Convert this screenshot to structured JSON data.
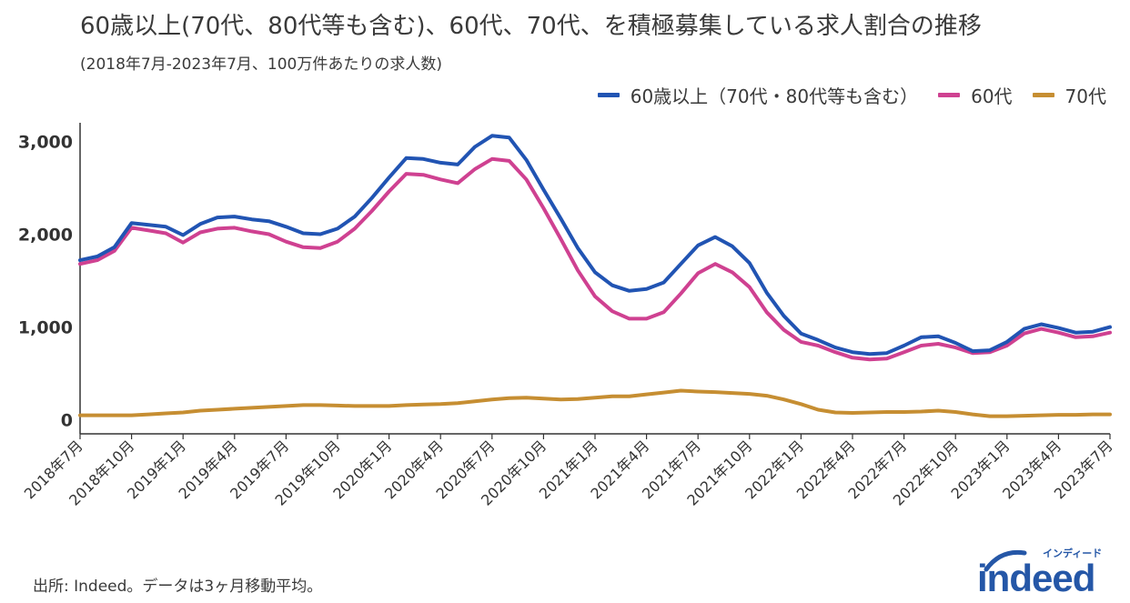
{
  "title": "60歳以上(70代、80代等も含む)、60代、70代、を積極募集している求人割合の推移",
  "subtitle": "(2018年7月-2023年7月、100万件あたりの求人数)",
  "source": "出所: Indeed。データは3ヶ月移動平均。",
  "logo": {
    "text": "indeed",
    "kana": "インディード"
  },
  "chart_data": {
    "type": "line",
    "title": "60歳以上(70代、80代等も含む)、60代、70代、を積極募集している求人割合の推移",
    "xlabel": "",
    "ylabel": "",
    "ylim": [
      -150,
      3200
    ],
    "yticks": [
      0,
      1000,
      2000,
      3000
    ],
    "ytick_labels": [
      "0",
      "1,000",
      "2,000",
      "3,000"
    ],
    "x_tick_labels": [
      "2018年7月",
      "2018年10月",
      "2019年1月",
      "2019年4月",
      "2019年7月",
      "2019年10月",
      "2020年1月",
      "2020年4月",
      "2020年7月",
      "2020年10月",
      "2021年1月",
      "2021年4月",
      "2021年7月",
      "2021年10月",
      "2022年1月",
      "2022年4月",
      "2022年7月",
      "2022年10月",
      "2023年1月",
      "2023年4月",
      "2023年7月"
    ],
    "legend_position": "top-right",
    "series": [
      {
        "name": "60歳以上（70代・80代等も含む）",
        "color": "#2154b3",
        "values": [
          1720,
          1760,
          1860,
          2120,
          2100,
          2080,
          1990,
          2110,
          2180,
          2190,
          2160,
          2140,
          2080,
          2010,
          2000,
          2060,
          2190,
          2390,
          2610,
          2820,
          2810,
          2770,
          2750,
          2940,
          3060,
          3040,
          2800,
          2480,
          2170,
          1850,
          1590,
          1450,
          1390,
          1410,
          1480,
          1680,
          1880,
          1970,
          1870,
          1690,
          1370,
          1120,
          930,
          860,
          780,
          730,
          710,
          720,
          800,
          890,
          900,
          830,
          740,
          750,
          840,
          980,
          1030,
          990,
          940,
          950,
          1000
        ]
      },
      {
        "name": "60代",
        "color": "#cf4191",
        "values": [
          1680,
          1720,
          1820,
          2070,
          2040,
          2010,
          1910,
          2020,
          2060,
          2070,
          2030,
          2000,
          1920,
          1860,
          1850,
          1920,
          2060,
          2250,
          2460,
          2650,
          2640,
          2590,
          2550,
          2700,
          2810,
          2790,
          2590,
          2280,
          1950,
          1610,
          1330,
          1170,
          1090,
          1090,
          1160,
          1360,
          1580,
          1680,
          1590,
          1430,
          1160,
          970,
          840,
          800,
          730,
          670,
          650,
          660,
          730,
          800,
          820,
          780,
          720,
          730,
          800,
          930,
          980,
          940,
          890,
          900,
          940
        ]
      },
      {
        "name": "70代",
        "color": "#c68e32",
        "values": [
          50,
          50,
          50,
          50,
          60,
          70,
          80,
          100,
          110,
          120,
          130,
          140,
          150,
          160,
          160,
          155,
          150,
          150,
          150,
          160,
          165,
          170,
          180,
          200,
          220,
          235,
          240,
          230,
          220,
          225,
          240,
          255,
          255,
          275,
          295,
          315,
          305,
          300,
          290,
          280,
          260,
          220,
          170,
          110,
          80,
          75,
          80,
          85,
          85,
          90,
          100,
          85,
          60,
          40,
          40,
          45,
          50,
          55,
          55,
          60,
          60
        ]
      }
    ]
  }
}
